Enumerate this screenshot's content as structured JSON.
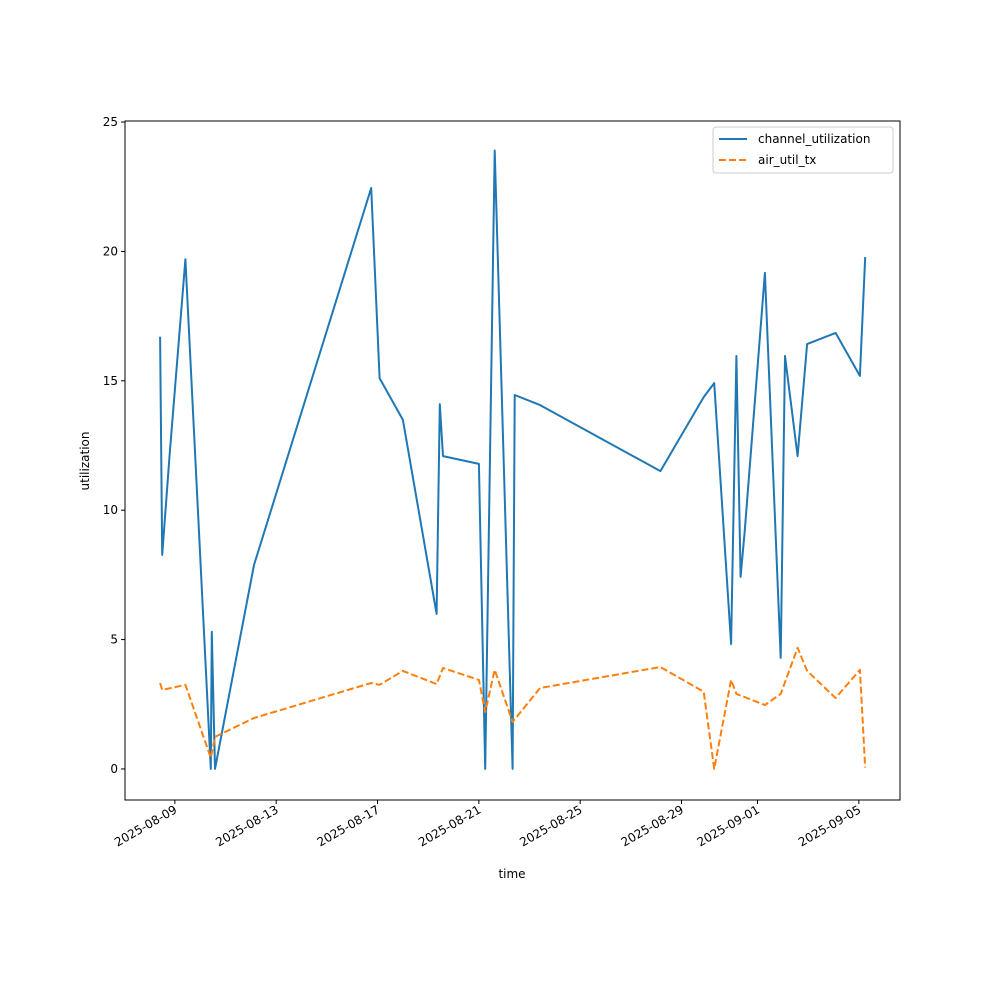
{
  "chart_data": {
    "type": "line",
    "title": "",
    "xlabel": "time",
    "ylabel": "utilization",
    "ylim": [
      -1.2,
      25.04
    ],
    "xlim": [
      "2025-08-07T00:45",
      "2025-09-06T15:00"
    ],
    "yticks": [
      0,
      5,
      10,
      15,
      20,
      25
    ],
    "xticks": [
      "2025-08-09",
      "2025-08-13",
      "2025-08-17",
      "2025-08-21",
      "2025-08-25",
      "2025-08-29",
      "2025-09-01",
      "2025-09-05"
    ],
    "grid": false,
    "legend_position": "top-right",
    "series": [
      {
        "name": "channel_utilization",
        "color": "#1f77b4",
        "style": "solid",
        "points": [
          [
            "2025-08-08T10:00",
            16.7
          ],
          [
            "2025-08-08T12:00",
            8.27
          ],
          [
            "2025-08-08T19:00",
            12.13
          ],
          [
            "2025-08-09T10:00",
            19.7
          ],
          [
            "2025-08-10T10:00",
            0
          ],
          [
            "2025-08-10T11:00",
            5.3
          ],
          [
            "2025-08-10T14:00",
            0
          ],
          [
            "2025-08-12T03:00",
            7.88
          ],
          [
            "2025-08-16T18:00",
            22.45
          ],
          [
            "2025-08-17T02:00",
            15.1
          ],
          [
            "2025-08-18T00:00",
            13.49
          ],
          [
            "2025-08-19T08:00",
            5.99
          ],
          [
            "2025-08-19T11:00",
            14.1
          ],
          [
            "2025-08-19T14:00",
            12.09
          ],
          [
            "2025-08-21T00:00",
            11.79
          ],
          [
            "2025-08-21T06:00",
            0
          ],
          [
            "2025-08-21T15:00",
            23.9
          ],
          [
            "2025-08-22T08:00",
            0
          ],
          [
            "2025-08-22T10:00",
            14.45
          ],
          [
            "2025-08-23T10:00",
            14.06
          ],
          [
            "2025-08-28T04:00",
            11.51
          ],
          [
            "2025-08-29T21:00",
            14.37
          ],
          [
            "2025-08-30T07:00",
            14.91
          ],
          [
            "2025-08-30T23:00",
            4.83
          ],
          [
            "2025-08-31T04:00",
            15.96
          ],
          [
            "2025-08-31T08:00",
            7.42
          ],
          [
            "2025-08-31T12:00",
            9.23
          ],
          [
            "2025-09-01T07:00",
            19.17
          ],
          [
            "2025-09-01T22:00",
            4.29
          ],
          [
            "2025-09-02T02:00",
            15.96
          ],
          [
            "2025-09-02T14:00",
            12.09
          ],
          [
            "2025-09-02T23:00",
            16.42
          ],
          [
            "2025-09-04T02:00",
            16.85
          ],
          [
            "2025-09-05T01:00",
            15.19
          ],
          [
            "2025-09-05T06:00",
            19.78
          ]
        ]
      },
      {
        "name": "air_util_tx",
        "color": "#ff7f0e",
        "style": "dashed",
        "points": [
          [
            "2025-08-08T10:00",
            3.32
          ],
          [
            "2025-08-08T12:00",
            3.05
          ],
          [
            "2025-08-09T10:00",
            3.25
          ],
          [
            "2025-08-10T10:00",
            0.43
          ],
          [
            "2025-08-10T14:00",
            1.24
          ],
          [
            "2025-08-12T03:00",
            1.97
          ],
          [
            "2025-08-16T18:00",
            3.32
          ],
          [
            "2025-08-17T02:00",
            3.25
          ],
          [
            "2025-08-18T00:00",
            3.79
          ],
          [
            "2025-08-19T08:00",
            3.28
          ],
          [
            "2025-08-19T14:00",
            3.9
          ],
          [
            "2025-08-21T00:00",
            3.44
          ],
          [
            "2025-08-21T06:00",
            2.2
          ],
          [
            "2025-08-21T15:00",
            3.83
          ],
          [
            "2025-08-22T08:00",
            1.82
          ],
          [
            "2025-08-23T10:00",
            3.13
          ],
          [
            "2025-08-28T04:00",
            3.94
          ],
          [
            "2025-08-29T21:00",
            2.98
          ],
          [
            "2025-08-30T07:00",
            0.0
          ],
          [
            "2025-08-30T23:00",
            3.44
          ],
          [
            "2025-08-31T04:00",
            2.9
          ],
          [
            "2025-09-01T07:00",
            2.47
          ],
          [
            "2025-09-01T22:00",
            2.9
          ],
          [
            "2025-09-02T14:00",
            4.68
          ],
          [
            "2025-09-02T23:00",
            3.79
          ],
          [
            "2025-09-04T02:00",
            2.74
          ],
          [
            "2025-09-05T01:00",
            3.83
          ],
          [
            "2025-09-05T06:00",
            0.05
          ]
        ]
      }
    ]
  }
}
